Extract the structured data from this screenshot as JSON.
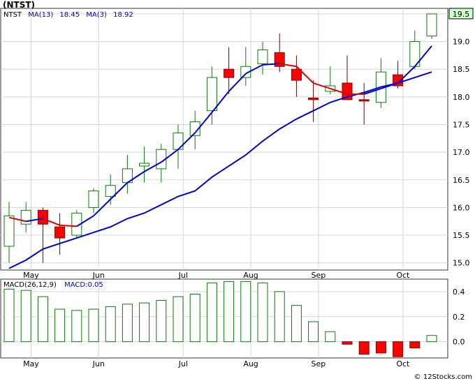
{
  "title": "(NTST)",
  "price_legend": {
    "symbol": "NTST",
    "ma13_label": "MA(13)",
    "ma13_value": "18.45",
    "ma3_label": "MA(3)",
    "ma3_value": "18.92"
  },
  "macd_legend": {
    "label": "MACD(26,12,9)",
    "value_label": "MACD:0.05"
  },
  "current_price_tag": "19.5",
  "credit": "© 12Stocks.com",
  "colors": {
    "up": "#0a7a0a",
    "down": "#ff0000",
    "ma13": "#0000cc",
    "ma3": "#dd0000",
    "grid": "#d6d6d6",
    "price_tag_bg": "#ccffcc"
  },
  "chart_data": {
    "type": "candlestick",
    "price_axis": {
      "ylim": [
        14.87,
        19.6
      ],
      "ticks": [
        "15.0",
        "15.5",
        "16.0",
        "16.5",
        "17.0",
        "17.5",
        "18.0",
        "18.5",
        "19.0",
        "19.5"
      ]
    },
    "macd_axis": {
      "ylim": [
        -0.13,
        0.5
      ],
      "ticks": [
        "0.0",
        "0.2",
        "0.4"
      ]
    },
    "x_labels": [
      {
        "label": "May",
        "index": 1.3
      },
      {
        "label": "Jun",
        "index": 5.3
      },
      {
        "label": "Jul",
        "index": 10.3
      },
      {
        "label": "Aug",
        "index": 14.3
      },
      {
        "label": "Sep",
        "index": 18.3
      },
      {
        "label": "Oct",
        "index": 23.3
      }
    ],
    "candles": [
      {
        "open": 15.3,
        "high": 16.1,
        "low": 15.0,
        "close": 15.85
      },
      {
        "open": 15.7,
        "high": 16.1,
        "low": 15.55,
        "close": 15.95
      },
      {
        "open": 15.95,
        "high": 16.0,
        "low": 15.0,
        "close": 15.7
      },
      {
        "open": 15.65,
        "high": 15.9,
        "low": 15.15,
        "close": 15.45
      },
      {
        "open": 15.5,
        "high": 15.95,
        "low": 15.45,
        "close": 15.9
      },
      {
        "open": 16.0,
        "high": 16.35,
        "low": 15.9,
        "close": 16.3
      },
      {
        "open": 16.2,
        "high": 16.6,
        "low": 16.05,
        "close": 16.4
      },
      {
        "open": 16.45,
        "high": 16.95,
        "low": 16.25,
        "close": 16.7
      },
      {
        "open": 16.75,
        "high": 17.1,
        "low": 16.45,
        "close": 16.8
      },
      {
        "open": 16.7,
        "high": 17.15,
        "low": 16.45,
        "close": 17.05
      },
      {
        "open": 17.05,
        "high": 17.5,
        "low": 16.7,
        "close": 17.35
      },
      {
        "open": 17.3,
        "high": 17.75,
        "low": 17.05,
        "close": 17.55
      },
      {
        "open": 17.75,
        "high": 18.55,
        "low": 17.5,
        "close": 18.35
      },
      {
        "open": 18.5,
        "high": 18.9,
        "low": 18.05,
        "close": 18.35
      },
      {
        "open": 18.35,
        "high": 18.9,
        "low": 18.2,
        "close": 18.55
      },
      {
        "open": 18.6,
        "high": 19.0,
        "low": 18.4,
        "close": 18.85
      },
      {
        "open": 18.8,
        "high": 19.15,
        "low": 18.45,
        "close": 18.55
      },
      {
        "open": 18.5,
        "high": 18.75,
        "low": 18.0,
        "close": 18.3
      },
      {
        "open": 17.98,
        "high": 18.3,
        "low": 17.55,
        "close": 17.95
      },
      {
        "open": 18.1,
        "high": 18.55,
        "low": 18.05,
        "close": 18.2
      },
      {
        "open": 18.25,
        "high": 18.75,
        "low": 17.95,
        "close": 17.95
      },
      {
        "open": 17.95,
        "high": 18.25,
        "low": 17.5,
        "close": 17.93
      },
      {
        "open": 17.9,
        "high": 18.7,
        "low": 17.8,
        "close": 18.45
      },
      {
        "open": 18.4,
        "high": 18.65,
        "low": 18.15,
        "close": 18.2
      },
      {
        "open": 18.55,
        "high": 19.2,
        "low": 18.5,
        "close": 19.0
      },
      {
        "open": 19.1,
        "high": 19.5,
        "low": 19.05,
        "close": 19.5
      }
    ],
    "series": [
      {
        "name": "MA(13)",
        "values": [
          14.9,
          15.05,
          15.25,
          15.35,
          15.45,
          15.55,
          15.65,
          15.8,
          15.9,
          16.05,
          16.2,
          16.3,
          16.55,
          16.75,
          16.95,
          17.2,
          17.42,
          17.6,
          17.75,
          17.9,
          18.0,
          18.08,
          18.18,
          18.25,
          18.35,
          18.45
        ]
      },
      {
        "name": "MA(3)",
        "values": [
          15.82,
          15.75,
          15.8,
          15.68,
          15.66,
          15.85,
          16.15,
          16.45,
          16.65,
          16.82,
          17.05,
          17.35,
          17.72,
          18.1,
          18.42,
          18.58,
          18.6,
          18.55,
          18.25,
          18.15,
          18.05,
          18.05,
          18.15,
          18.25,
          18.55,
          18.92
        ]
      }
    ],
    "macd_values": [
      0.42,
      0.41,
      0.36,
      0.26,
      0.25,
      0.26,
      0.28,
      0.3,
      0.31,
      0.33,
      0.36,
      0.38,
      0.47,
      0.48,
      0.48,
      0.47,
      0.4,
      0.29,
      0.16,
      0.08,
      -0.02,
      -0.1,
      -0.09,
      -0.12,
      -0.05,
      0.05
    ]
  }
}
